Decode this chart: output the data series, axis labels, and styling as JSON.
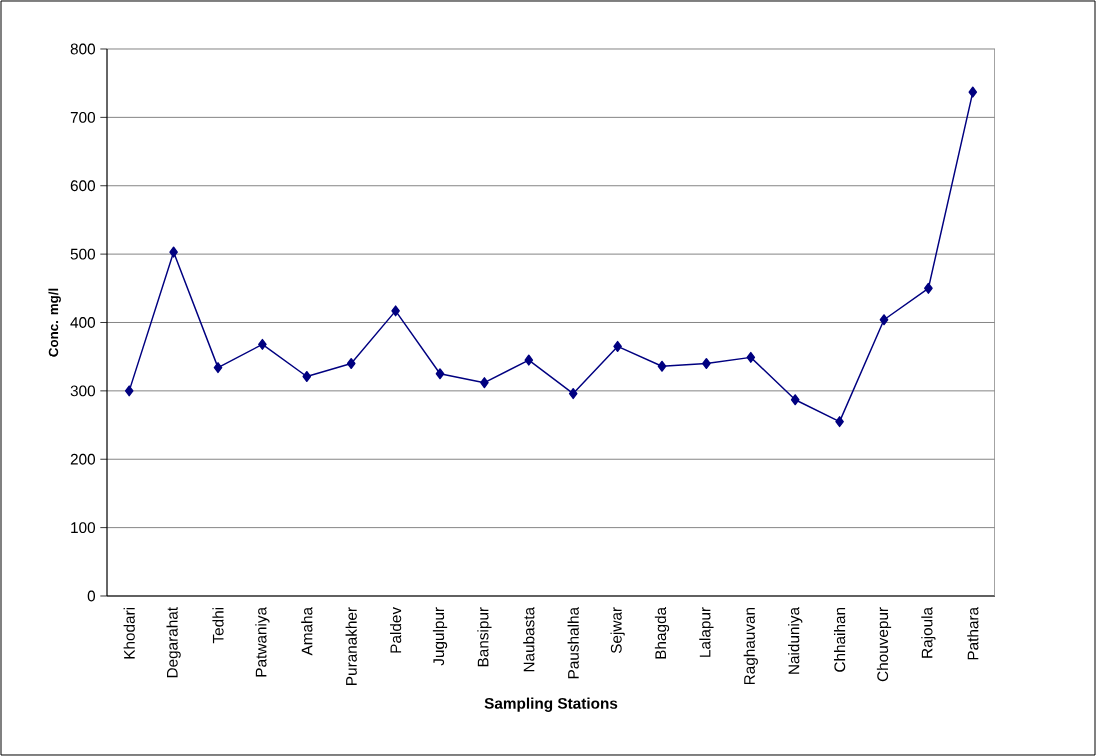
{
  "chart_data": {
    "type": "line",
    "xlabel": "Sampling Stations",
    "ylabel": "Conc. mg/l",
    "categories": [
      "Khodari",
      "Degarahat",
      "Tedhi",
      "Patwaniya",
      "Amaha",
      "Puranakher",
      "Paldev",
      "Jugulpur",
      "Bansipur",
      "Naubasta",
      "Paushalha",
      "Sejwar",
      "Bhagda",
      "Lalapur",
      "Raghauvan",
      "Naiduniya",
      "Chhaihan",
      "Chouvepur",
      "Rajoula",
      "Pathara"
    ],
    "series": [
      {
        "color": "#000080",
        "values": [
          300,
          503,
          334,
          368,
          321,
          340,
          417,
          325,
          312,
          345,
          296,
          365,
          336,
          340,
          349,
          287,
          255,
          404,
          450,
          737
        ]
      }
    ],
    "ylim": [
      0,
      800
    ],
    "yticks": [
      0,
      100,
      200,
      300,
      400,
      500,
      600,
      700,
      800
    ],
    "grid": "y",
    "marker": "diamond",
    "line_style": "solid"
  }
}
